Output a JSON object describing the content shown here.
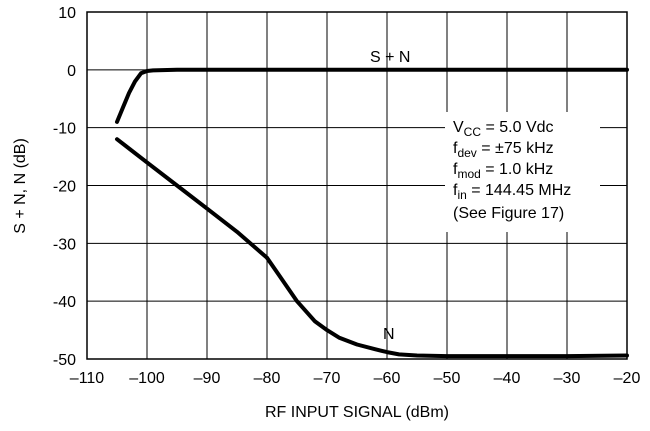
{
  "chart_data": {
    "type": "line",
    "xlabel": "RF INPUT SIGNAL (dBm)",
    "ylabel": "S + N, N (dB)",
    "xlim": [
      -110,
      -20
    ],
    "ylim": [
      -50,
      10
    ],
    "xticks": [
      -110,
      -100,
      -90,
      -80,
      -70,
      -60,
      -50,
      -40,
      -30,
      -20
    ],
    "yticks": [
      10,
      0,
      -10,
      -20,
      -30,
      -40,
      -50
    ],
    "xtick_labels": [
      "–110",
      "–100",
      "–90",
      "–80",
      "–70",
      "–60",
      "–50",
      "–40",
      "–30",
      "–20"
    ],
    "ytick_labels": [
      "10",
      "0",
      "-10",
      "-20",
      "-30",
      "-40",
      "-50"
    ],
    "grid": true,
    "series": [
      {
        "name": "S + N",
        "x": [
          -105,
          -104,
          -103,
          -102,
          -101,
          -100,
          -99,
          -95,
          -90,
          -80,
          -70,
          -60,
          -50,
          -40,
          -30,
          -20
        ],
        "y": [
          -9,
          -6.5,
          -4,
          -2,
          -0.6,
          -0.2,
          -0.1,
          0,
          0,
          0,
          0,
          0,
          0,
          0,
          0,
          0
        ]
      },
      {
        "name": "N",
        "x": [
          -105,
          -100,
          -95,
          -90,
          -85,
          -80,
          -78,
          -75,
          -72,
          -70,
          -68,
          -65,
          -62,
          -60,
          -58,
          -55,
          -50,
          -40,
          -30,
          -20
        ],
        "y": [
          -12,
          -16,
          -20,
          -24,
          -28,
          -32.5,
          -35.5,
          -40,
          -43.5,
          -45,
          -46.3,
          -47.5,
          -48.3,
          -48.8,
          -49.2,
          -49.4,
          -49.5,
          -49.5,
          -49.5,
          -49.4
        ]
      }
    ],
    "annotations": {
      "vcc_main": "V",
      "vcc_sub": "CC",
      "vcc_rest": " = 5.0 Vdc",
      "fdev_main": "f",
      "fdev_sub": "dev",
      "fdev_rest": " = ±75 kHz",
      "fmod_main": "f",
      "fmod_sub": "mod",
      "fmod_rest": " = 1.0 kHz",
      "fin_main": "f",
      "fin_sub": "in",
      "fin_rest": " = 144.45 MHz",
      "see_figure": "(See Figure 17)"
    }
  }
}
